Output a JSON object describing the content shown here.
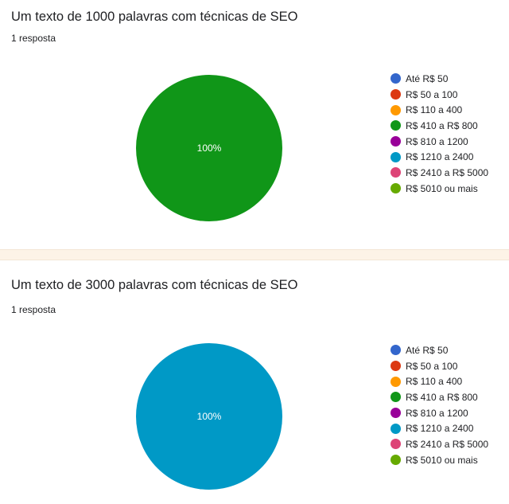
{
  "questions": [
    {
      "title": "Um texto de 1000 palavras com técnicas de SEO",
      "responses": "1 resposta"
    },
    {
      "title": "Um texto de 3000 palavras com técnicas de SEO",
      "responses": "1 resposta"
    }
  ],
  "legend_colors": [
    "#3366cc",
    "#dc3912",
    "#ff9900",
    "#109618",
    "#990099",
    "#0099c6",
    "#dd4477",
    "#66aa00"
  ],
  "chart_data": [
    {
      "type": "pie",
      "title": "Um texto de 1000 palavras com técnicas de SEO",
      "categories": [
        "Até R$ 50",
        "R$ 50 a 100",
        "R$ 110 a 400",
        "R$ 410 a R$ 800",
        "R$ 810 a 1200",
        "R$ 1210 a 2400",
        "R$ 2410 a R$ 5000",
        "R$ 5010 ou mais"
      ],
      "values": [
        0,
        0,
        0,
        1,
        0,
        0,
        0,
        0
      ],
      "slice_labels": [
        "",
        "",
        "",
        "100%",
        "",
        "",
        "",
        ""
      ],
      "legend_position": "right"
    },
    {
      "type": "pie",
      "title": "Um texto de 3000 palavras com técnicas de SEO",
      "categories": [
        "Até R$ 50",
        "R$ 50 a 100",
        "R$ 110 a 400",
        "R$ 410 a R$ 800",
        "R$ 810 a 1200",
        "R$ 1210 a 2400",
        "R$ 2410 a R$ 5000",
        "R$ 5010 ou mais"
      ],
      "values": [
        0,
        0,
        0,
        0,
        0,
        1,
        0,
        0
      ],
      "slice_labels": [
        "",
        "",
        "",
        "",
        "",
        "100%",
        "",
        ""
      ],
      "legend_position": "right"
    }
  ]
}
